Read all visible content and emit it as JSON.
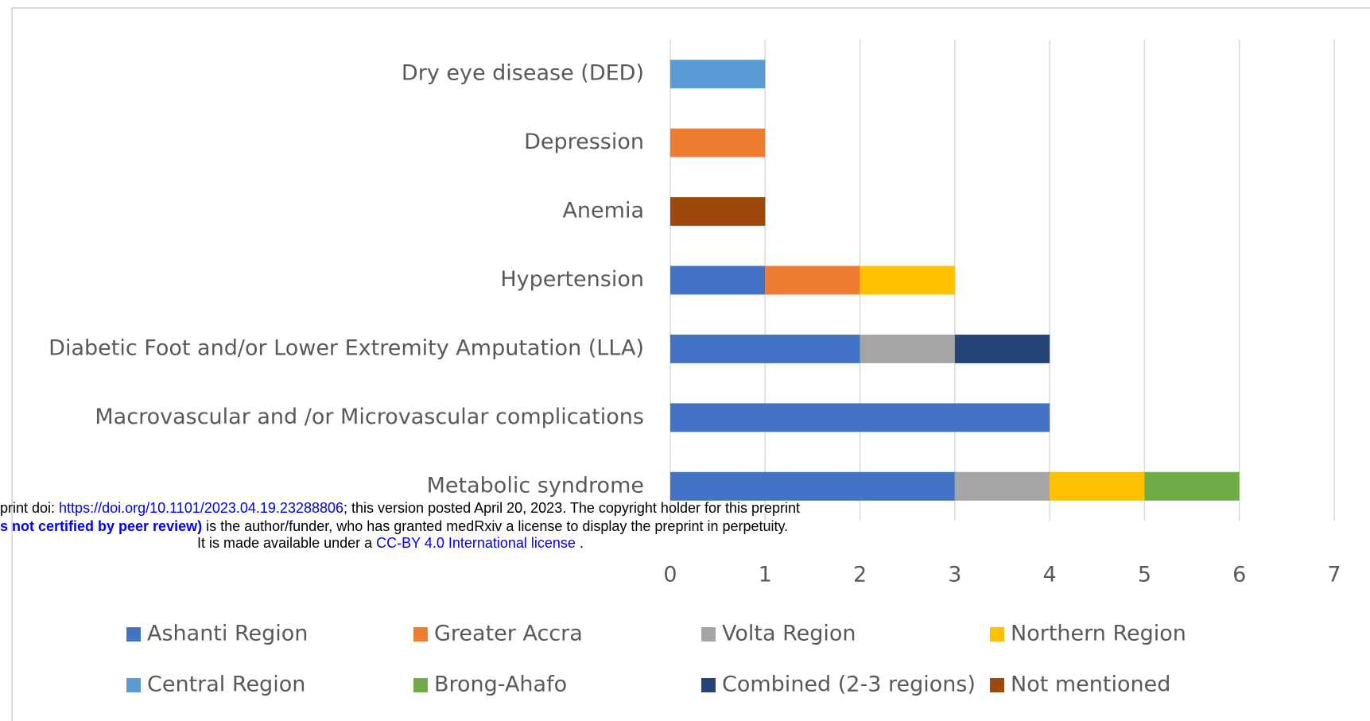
{
  "chart_data": {
    "type": "bar",
    "orientation": "horizontal",
    "stacked": true,
    "categories": [
      "Dry eye disease (DED)",
      "Depression",
      "Anemia",
      "Hypertension",
      "Diabetic Foot and/or Lower Extremity Amputation (LLA)",
      "Macrovascular and /or Microvascular complications",
      "Metabolic syndrome"
    ],
    "series": [
      {
        "name": "Ashanti Region",
        "color": "#4472c4",
        "values": [
          0,
          0,
          0,
          1,
          2,
          4,
          3
        ]
      },
      {
        "name": "Greater Accra",
        "color": "#ed7d31",
        "values": [
          0,
          1,
          0,
          1,
          0,
          0,
          0
        ]
      },
      {
        "name": "Volta Region",
        "color": "#a5a5a5",
        "values": [
          0,
          0,
          0,
          0,
          1,
          0,
          1
        ]
      },
      {
        "name": "Northern Region",
        "color": "#ffc000",
        "values": [
          0,
          0,
          0,
          1,
          0,
          0,
          1
        ]
      },
      {
        "name": "Central Region",
        "color": "#5b9bd5",
        "values": [
          1,
          0,
          0,
          0,
          0,
          0,
          0
        ]
      },
      {
        "name": "Brong-Ahafo",
        "color": "#70ad47",
        "values": [
          0,
          0,
          0,
          0,
          0,
          0,
          1
        ]
      },
      {
        "name": "Combined (2-3 regions)",
        "color": "#264478",
        "values": [
          0,
          0,
          0,
          0,
          1,
          0,
          0
        ]
      },
      {
        "name": "Not mentioned",
        "color": "#9e480e",
        "values": [
          0,
          0,
          1,
          0,
          0,
          0,
          0
        ]
      }
    ],
    "xlim": [
      0,
      7
    ],
    "xticks": [
      0,
      1,
      2,
      3,
      4,
      5,
      6,
      7
    ],
    "grid": true,
    "legend": "bottom"
  },
  "watermark": {
    "line1": [
      "print doi: ",
      "https://doi.org/10.1101/2023.04.19.23288806",
      "; this version posted April 20, 2023. The copyright holder for this preprint"
    ],
    "line2": [
      "s not certified by peer review)",
      " is the author/funder, who has granted medRxiv a license to display the preprint in perpetuity."
    ],
    "line3": [
      "It is made available under a ",
      "CC-BY 4.0 International license",
      " ."
    ]
  }
}
